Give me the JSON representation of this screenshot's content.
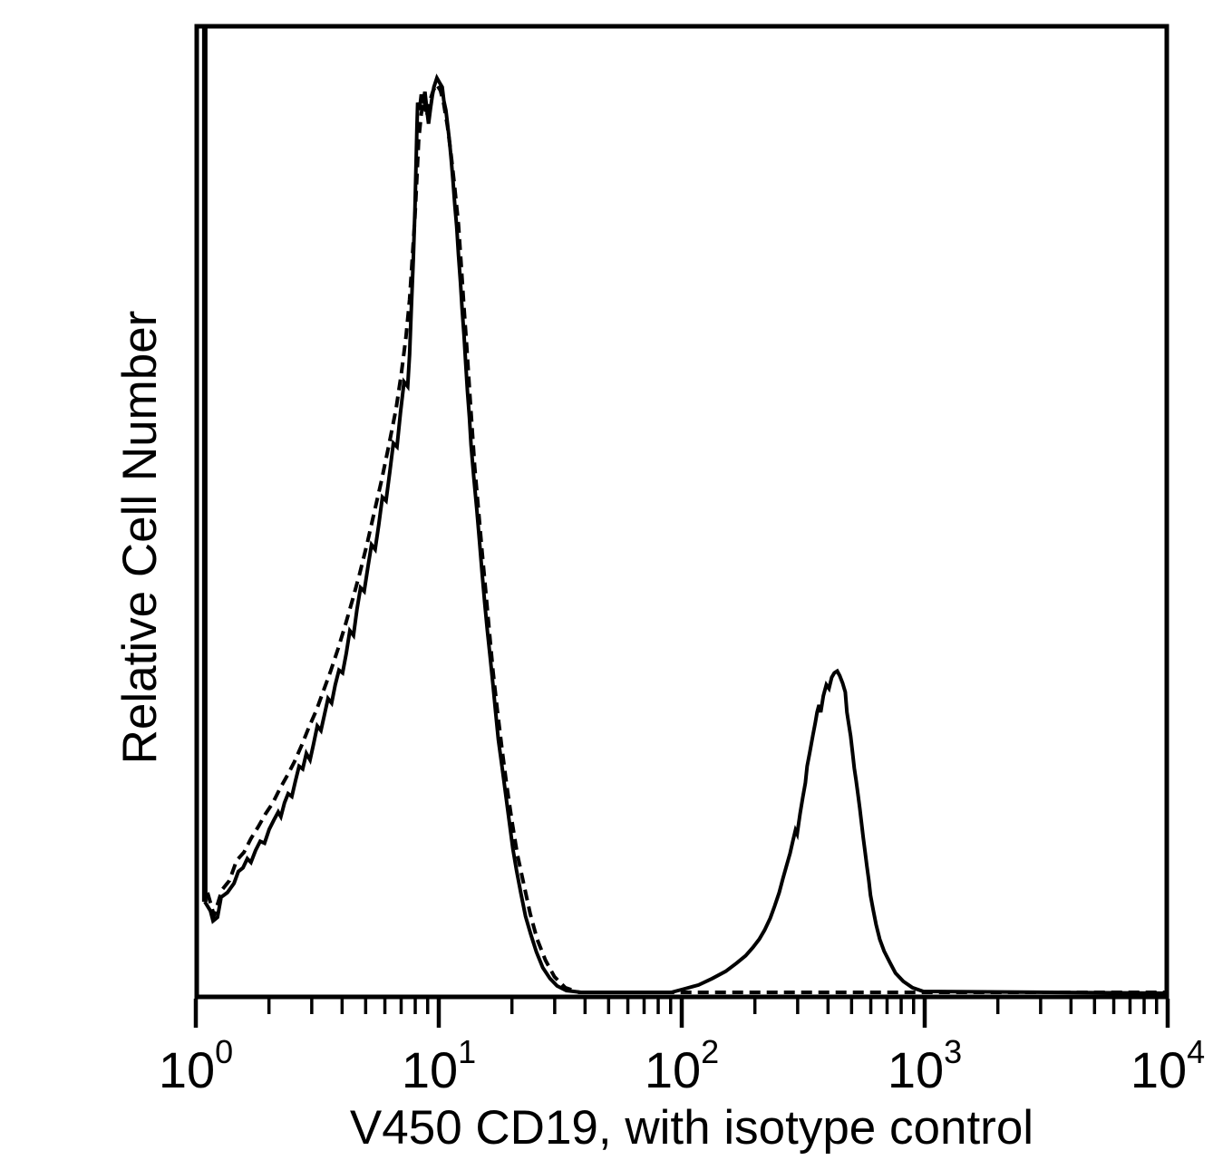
{
  "figure": {
    "xlabel": "V450 CD19, with isotype control",
    "ylabel": "Relative Cell Number",
    "x_tick_labels": [
      {
        "base": "10",
        "exp": "0"
      },
      {
        "base": "10",
        "exp": "1"
      },
      {
        "base": "10",
        "exp": "2"
      },
      {
        "base": "10",
        "exp": "3"
      },
      {
        "base": "10",
        "exp": "4"
      }
    ],
    "colors": {
      "foreground": "#000000",
      "background": "#ffffff"
    }
  },
  "chart_data": {
    "type": "line",
    "subtype": "flow-cytometry-overlay-histogram",
    "title": "",
    "xlabel": "V450 CD19, with isotype control",
    "ylabel": "Relative Cell Number",
    "x_axis": {
      "scale": "log10",
      "min": 1,
      "max": 10000,
      "tick_values": [
        1,
        10,
        100,
        1000,
        10000
      ],
      "minor_ticks": "2-9 per decade"
    },
    "y_axis": {
      "units": "relative cell number, 0-100 (% of tallest peak)",
      "ticks_shown": false
    },
    "grid": false,
    "legend": "none shown (solid curve = V450 CD19 stain; dashed curve = isotype control)",
    "pileup_spike": {
      "logx": 0.035,
      "rel_height": 105,
      "note": "off-scale first-channel spike, clipped at plot top"
    },
    "annotations": {
      "solid_peak_1": {
        "x": 10,
        "rel_height": 100
      },
      "solid_peak_2": {
        "x": 440,
        "rel_height": 35
      },
      "dashed_peak": {
        "x": 10,
        "rel_height": 99
      }
    },
    "series": [
      {
        "name": "V450 CD19",
        "style": "solid",
        "points_logx_rel": [
          [
            0.037,
            10.0
          ],
          [
            0.06,
            9.0
          ],
          [
            0.071,
            7.9
          ],
          [
            0.089,
            8.3
          ],
          [
            0.104,
            10.5
          ],
          [
            0.13,
            11.0
          ],
          [
            0.157,
            12.0
          ],
          [
            0.175,
            13.3
          ],
          [
            0.194,
            13.7
          ],
          [
            0.212,
            14.7
          ],
          [
            0.227,
            14.3
          ],
          [
            0.246,
            15.6
          ],
          [
            0.265,
            16.6
          ],
          [
            0.283,
            16.4
          ],
          [
            0.302,
            17.9
          ],
          [
            0.321,
            18.9
          ],
          [
            0.339,
            19.8
          ],
          [
            0.35,
            19.3
          ],
          [
            0.365,
            20.8
          ],
          [
            0.38,
            21.8
          ],
          [
            0.395,
            21.5
          ],
          [
            0.41,
            23.2
          ],
          [
            0.425,
            24.8
          ],
          [
            0.44,
            24.5
          ],
          [
            0.455,
            26.2
          ],
          [
            0.47,
            25.5
          ],
          [
            0.485,
            27.3
          ],
          [
            0.5,
            29.2
          ],
          [
            0.515,
            28.7
          ],
          [
            0.529,
            30.4
          ],
          [
            0.544,
            32.2
          ],
          [
            0.559,
            31.7
          ],
          [
            0.574,
            33.7
          ],
          [
            0.589,
            35.3
          ],
          [
            0.604,
            35.0
          ],
          [
            0.619,
            37.1
          ],
          [
            0.634,
            39.6
          ],
          [
            0.649,
            39.1
          ],
          [
            0.663,
            41.9
          ],
          [
            0.678,
            44.3
          ],
          [
            0.693,
            43.9
          ],
          [
            0.708,
            46.5
          ],
          [
            0.723,
            49.0
          ],
          [
            0.738,
            48.5
          ],
          [
            0.753,
            51.2
          ],
          [
            0.768,
            54.2
          ],
          [
            0.783,
            53.8
          ],
          [
            0.798,
            56.9
          ],
          [
            0.813,
            60.1
          ],
          [
            0.828,
            59.7
          ],
          [
            0.842,
            63.4
          ],
          [
            0.857,
            66.8
          ],
          [
            0.872,
            66.3
          ],
          [
            0.88,
            69.8
          ],
          [
            0.887,
            74.8
          ],
          [
            0.895,
            80.2
          ],
          [
            0.902,
            85.6
          ],
          [
            0.906,
            90.1
          ],
          [
            0.91,
            94.6
          ],
          [
            0.913,
            97.3
          ],
          [
            0.921,
            96.5
          ],
          [
            0.928,
            98.2
          ],
          [
            0.936,
            97.3
          ],
          [
            0.943,
            98.5
          ],
          [
            0.951,
            96.5
          ],
          [
            0.958,
            95.0
          ],
          [
            0.966,
            96.7
          ],
          [
            0.973,
            98.0
          ],
          [
            0.98,
            99.0
          ],
          [
            0.992,
            100.0
          ],
          [
            1.003,
            99.5
          ],
          [
            1.014,
            99.0
          ],
          [
            1.021,
            97.5
          ],
          [
            1.029,
            96.5
          ],
          [
            1.036,
            95.0
          ],
          [
            1.044,
            93.1
          ],
          [
            1.051,
            91.1
          ],
          [
            1.059,
            88.6
          ],
          [
            1.066,
            86.1
          ],
          [
            1.074,
            83.7
          ],
          [
            1.081,
            80.7
          ],
          [
            1.089,
            77.7
          ],
          [
            1.096,
            74.8
          ],
          [
            1.104,
            71.8
          ],
          [
            1.111,
            68.8
          ],
          [
            1.118,
            65.8
          ],
          [
            1.126,
            62.9
          ],
          [
            1.133,
            59.9
          ],
          [
            1.144,
            56.4
          ],
          [
            1.156,
            53.0
          ],
          [
            1.167,
            49.5
          ],
          [
            1.178,
            46.0
          ],
          [
            1.189,
            42.6
          ],
          [
            1.2,
            39.6
          ],
          [
            1.212,
            36.6
          ],
          [
            1.223,
            33.7
          ],
          [
            1.234,
            30.7
          ],
          [
            1.245,
            27.7
          ],
          [
            1.26,
            24.8
          ],
          [
            1.275,
            21.8
          ],
          [
            1.29,
            18.8
          ],
          [
            1.305,
            15.8
          ],
          [
            1.32,
            13.4
          ],
          [
            1.338,
            10.9
          ],
          [
            1.357,
            8.4
          ],
          [
            1.379,
            6.4
          ],
          [
            1.402,
            4.5
          ],
          [
            1.428,
            2.8
          ],
          [
            1.458,
            1.6
          ],
          [
            1.487,
            0.8
          ],
          [
            1.525,
            0.3
          ],
          [
            1.585,
            0.1
          ],
          [
            1.957,
            0.1
          ],
          [
            2.013,
            0.5
          ],
          [
            2.069,
            0.9
          ],
          [
            2.125,
            1.6
          ],
          [
            2.181,
            2.4
          ],
          [
            2.226,
            3.3
          ],
          [
            2.263,
            4.1
          ],
          [
            2.293,
            5.0
          ],
          [
            2.319,
            5.9
          ],
          [
            2.341,
            6.9
          ],
          [
            2.364,
            8.2
          ],
          [
            2.382,
            9.5
          ],
          [
            2.401,
            11.0
          ],
          [
            2.416,
            12.5
          ],
          [
            2.431,
            13.9
          ],
          [
            2.446,
            15.3
          ],
          [
            2.457,
            16.6
          ],
          [
            2.468,
            17.8
          ],
          [
            2.475,
            17.4
          ],
          [
            2.487,
            19.6
          ],
          [
            2.498,
            21.4
          ],
          [
            2.509,
            23.0
          ],
          [
            2.516,
            24.8
          ],
          [
            2.527,
            26.3
          ],
          [
            2.539,
            28.1
          ],
          [
            2.55,
            29.6
          ],
          [
            2.557,
            30.7
          ],
          [
            2.565,
            31.5
          ],
          [
            2.572,
            30.7
          ],
          [
            2.583,
            32.5
          ],
          [
            2.595,
            33.7
          ],
          [
            2.606,
            33.3
          ],
          [
            2.617,
            34.5
          ],
          [
            2.628,
            35.0
          ],
          [
            2.64,
            35.2
          ],
          [
            2.65,
            34.7
          ],
          [
            2.662,
            33.9
          ],
          [
            2.673,
            32.9
          ],
          [
            2.68,
            30.7
          ],
          [
            2.688,
            29.3
          ],
          [
            2.695,
            28.1
          ],
          [
            2.703,
            26.3
          ],
          [
            2.71,
            24.6
          ],
          [
            2.718,
            23.2
          ],
          [
            2.725,
            21.8
          ],
          [
            2.733,
            20.2
          ],
          [
            2.74,
            18.6
          ],
          [
            2.747,
            17.0
          ],
          [
            2.755,
            15.4
          ],
          [
            2.762,
            13.9
          ],
          [
            2.77,
            12.3
          ],
          [
            2.777,
            10.7
          ],
          [
            2.788,
            9.1
          ],
          [
            2.8,
            7.5
          ],
          [
            2.815,
            5.9
          ],
          [
            2.833,
            4.6
          ],
          [
            2.856,
            3.4
          ],
          [
            2.88,
            2.2
          ],
          [
            2.912,
            1.3
          ],
          [
            2.95,
            0.6
          ],
          [
            2.994,
            0.2
          ],
          [
            4.0,
            0.0
          ]
        ]
      },
      {
        "name": "isotype control",
        "style": "dashed",
        "points_logx_rel": [
          [
            0.048,
            11.0
          ],
          [
            0.075,
            8.5
          ],
          [
            0.108,
            11.3
          ],
          [
            0.138,
            12.3
          ],
          [
            0.168,
            14.5
          ],
          [
            0.198,
            15.4
          ],
          [
            0.227,
            16.9
          ],
          [
            0.257,
            18.2
          ],
          [
            0.287,
            19.6
          ],
          [
            0.317,
            20.8
          ],
          [
            0.347,
            22.4
          ],
          [
            0.377,
            23.8
          ],
          [
            0.406,
            25.3
          ],
          [
            0.436,
            27.1
          ],
          [
            0.466,
            29.1
          ],
          [
            0.496,
            30.9
          ],
          [
            0.526,
            33.1
          ],
          [
            0.555,
            35.2
          ],
          [
            0.585,
            37.6
          ],
          [
            0.615,
            40.2
          ],
          [
            0.645,
            43.0
          ],
          [
            0.675,
            45.9
          ],
          [
            0.705,
            49.1
          ],
          [
            0.734,
            52.5
          ],
          [
            0.764,
            56.0
          ],
          [
            0.794,
            59.8
          ],
          [
            0.824,
            63.8
          ],
          [
            0.846,
            67.7
          ],
          [
            0.865,
            71.7
          ],
          [
            0.88,
            75.8
          ],
          [
            0.891,
            80.3
          ],
          [
            0.902,
            84.8
          ],
          [
            0.91,
            89.2
          ],
          [
            0.917,
            93.2
          ],
          [
            0.928,
            96.1
          ],
          [
            0.939,
            97.6
          ],
          [
            0.95,
            95.8
          ],
          [
            0.962,
            97.4
          ],
          [
            0.977,
            98.6
          ],
          [
            0.991,
            99.3
          ],
          [
            1.007,
            98.6
          ],
          [
            1.021,
            97.1
          ],
          [
            1.036,
            94.7
          ],
          [
            1.051,
            91.5
          ],
          [
            1.066,
            87.9
          ],
          [
            1.081,
            84.0
          ],
          [
            1.092,
            79.6
          ],
          [
            1.103,
            75.2
          ],
          [
            1.115,
            70.7
          ],
          [
            1.126,
            66.1
          ],
          [
            1.137,
            61.8
          ],
          [
            1.148,
            57.4
          ],
          [
            1.163,
            52.9
          ],
          [
            1.178,
            48.3
          ],
          [
            1.193,
            44.0
          ],
          [
            1.208,
            39.6
          ],
          [
            1.223,
            35.2
          ],
          [
            1.241,
            30.9
          ],
          [
            1.26,
            26.7
          ],
          [
            1.279,
            22.8
          ],
          [
            1.301,
            18.8
          ],
          [
            1.323,
            15.2
          ],
          [
            1.35,
            11.9
          ],
          [
            1.376,
            8.7
          ],
          [
            1.405,
            5.9
          ],
          [
            1.439,
            3.6
          ],
          [
            1.476,
            1.8
          ],
          [
            1.521,
            0.6
          ],
          [
            1.577,
            0.1
          ],
          [
            4.0,
            0.1
          ]
        ]
      }
    ]
  }
}
